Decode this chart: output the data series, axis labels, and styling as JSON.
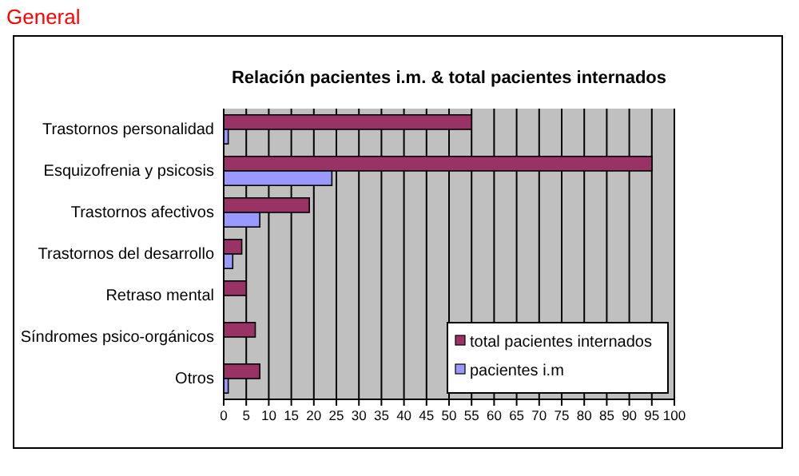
{
  "chart_data": {
    "type": "bar",
    "orientation": "horizontal",
    "title": "Relación pacientes i.m. & total pacientes internados",
    "annotations": [
      "General"
    ],
    "categories": [
      "Trastornos personalidad",
      "Esquizofrenia y psicosis",
      "Trastornos afectivos",
      "Trastornos del desarrollo",
      "Retraso mental",
      "Síndromes psico-orgánicos",
      "Otros"
    ],
    "series": [
      {
        "name": "total pacientes internados",
        "color": "#993366",
        "values": [
          55,
          95,
          19,
          4,
          5,
          7,
          8
        ]
      },
      {
        "name": "pacientes i.m",
        "color": "#9999ff",
        "values": [
          1,
          24,
          8,
          2,
          0,
          0,
          1
        ]
      }
    ],
    "xlim": [
      0,
      100
    ],
    "xticks": [
      0,
      5,
      10,
      15,
      20,
      25,
      30,
      35,
      40,
      45,
      50,
      55,
      60,
      65,
      70,
      75,
      80,
      85,
      90,
      95,
      100
    ],
    "grid": "x",
    "legend": "bottom right"
  }
}
